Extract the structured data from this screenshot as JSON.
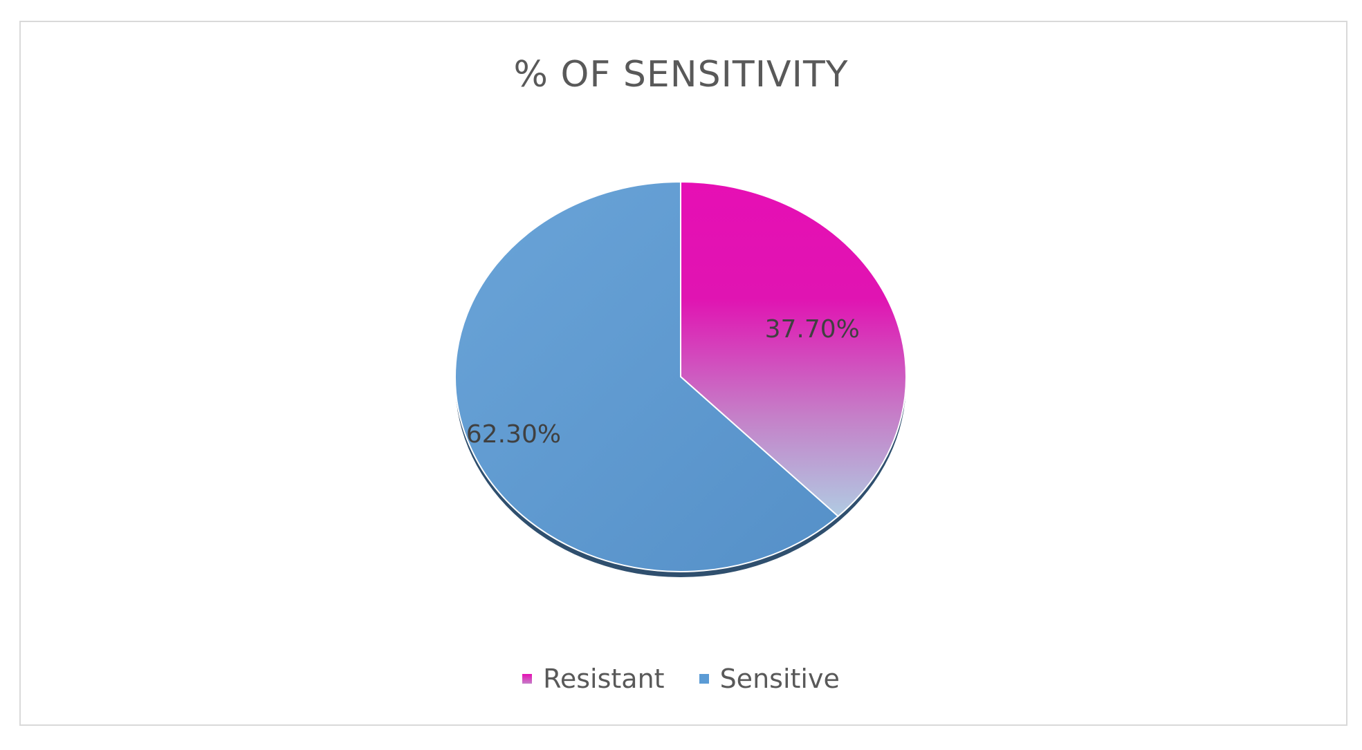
{
  "chart_data": {
    "type": "pie",
    "title": "% OF SENSITIVITY",
    "categories": [
      "Resistant",
      "Sensitive"
    ],
    "values": [
      37.7,
      62.3
    ],
    "data_labels": [
      "37.70%",
      "62.30%"
    ],
    "legend_position": "bottom",
    "colors": {
      "Resistant": "#e60fb4",
      "Resistant_gradient_end": "#b0cbe2",
      "Sensitive": "#5b9bd5"
    }
  }
}
